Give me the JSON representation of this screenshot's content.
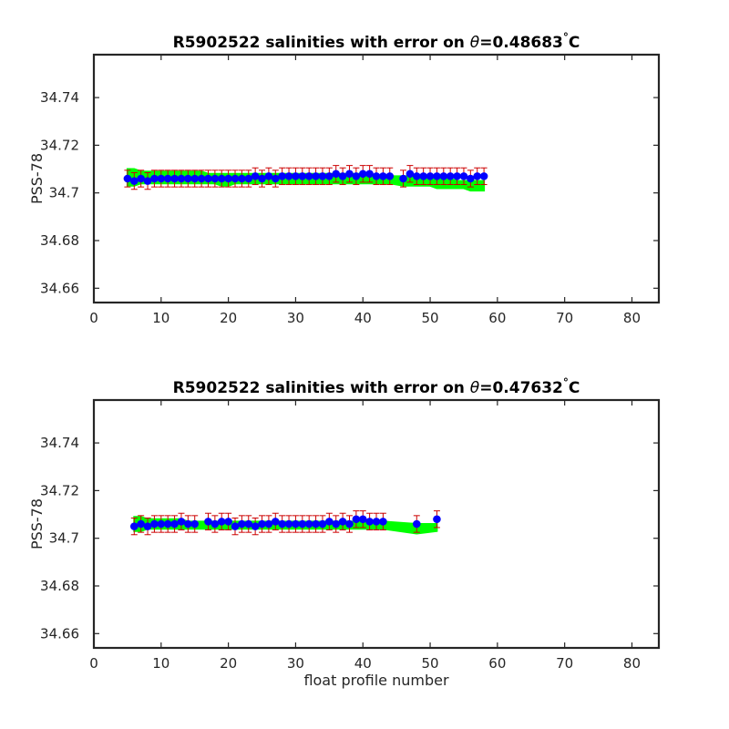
{
  "chart_data": [
    {
      "type": "scatter",
      "title": {
        "prefix": "R5902522 salinities with error on ",
        "symbol": "θ",
        "value": "=0.48683",
        "degree": "°",
        "unit": "C"
      },
      "xlabel": "",
      "ylabel": "PSS-78",
      "xlim": [
        0,
        84
      ],
      "ylim": [
        34.654,
        34.758
      ],
      "xticks": [
        0,
        10,
        20,
        30,
        40,
        50,
        60,
        70,
        80
      ],
      "xtick_labels": [
        "0",
        "10",
        "20",
        "30",
        "40",
        "50",
        "60",
        "70",
        "80"
      ],
      "yticks": [
        34.66,
        34.68,
        34.7,
        34.72,
        34.74
      ],
      "ytick_labels": [
        "34.66",
        "34.68",
        "34.7",
        "34.72",
        "34.74"
      ],
      "grid": false,
      "colors": {
        "points": "#0000ff",
        "errorbars": "#cc0000",
        "band": "#00ff00"
      },
      "x": [
        5,
        6,
        7,
        8,
        9,
        10,
        11,
        12,
        13,
        14,
        15,
        16,
        17,
        18,
        19,
        20,
        21,
        22,
        23,
        24,
        25,
        26,
        27,
        28,
        29,
        30,
        31,
        32,
        33,
        34,
        35,
        36,
        37,
        38,
        39,
        40,
        41,
        42,
        43,
        44,
        46,
        47,
        48,
        49,
        50,
        51,
        52,
        53,
        54,
        55,
        56,
        57,
        58
      ],
      "y": [
        34.706,
        34.705,
        34.706,
        34.705,
        34.706,
        34.706,
        34.706,
        34.706,
        34.706,
        34.706,
        34.706,
        34.706,
        34.706,
        34.706,
        34.706,
        34.706,
        34.706,
        34.706,
        34.706,
        34.707,
        34.706,
        34.707,
        34.706,
        34.707,
        34.707,
        34.707,
        34.707,
        34.707,
        34.707,
        34.707,
        34.707,
        34.708,
        34.707,
        34.708,
        34.707,
        34.708,
        34.708,
        34.707,
        34.707,
        34.707,
        34.706,
        34.708,
        34.707,
        34.707,
        34.707,
        34.707,
        34.707,
        34.707,
        34.707,
        34.707,
        34.706,
        34.707,
        34.707
      ],
      "error": 0.0035,
      "band_upper": [
        34.71,
        34.71,
        34.709,
        34.709,
        34.709,
        34.709,
        34.709,
        34.709,
        34.709,
        34.709,
        34.709,
        34.709,
        34.708,
        34.708,
        34.708,
        34.708,
        34.708,
        34.708,
        34.708,
        34.708,
        34.708,
        34.708,
        34.708,
        34.708,
        34.708,
        34.708,
        34.708,
        34.708,
        34.708,
        34.708,
        34.708,
        34.708,
        34.708,
        34.708,
        34.708,
        34.708,
        34.708,
        34.707,
        34.707,
        34.707,
        34.707,
        34.707,
        34.706,
        34.706,
        34.706,
        34.706,
        34.706,
        34.706,
        34.705,
        34.705,
        34.705,
        34.705,
        34.705
      ],
      "band_lower": [
        34.703,
        34.703,
        34.704,
        34.704,
        34.704,
        34.704,
        34.704,
        34.704,
        34.704,
        34.704,
        34.704,
        34.704,
        34.704,
        34.704,
        34.703,
        34.703,
        34.704,
        34.704,
        34.704,
        34.704,
        34.704,
        34.704,
        34.704,
        34.704,
        34.704,
        34.704,
        34.704,
        34.704,
        34.704,
        34.704,
        34.704,
        34.704,
        34.704,
        34.704,
        34.704,
        34.704,
        34.704,
        34.704,
        34.704,
        34.704,
        34.703,
        34.703,
        34.703,
        34.703,
        34.703,
        34.702,
        34.702,
        34.702,
        34.702,
        34.702,
        34.701,
        34.701,
        34.701
      ]
    },
    {
      "type": "scatter",
      "title": {
        "prefix": "R5902522 salinities with error on ",
        "symbol": "θ",
        "value": "=0.47632",
        "degree": "°",
        "unit": "C"
      },
      "xlabel": "float profile number",
      "ylabel": "PSS-78",
      "xlim": [
        0,
        84
      ],
      "ylim": [
        34.654,
        34.758
      ],
      "xticks": [
        0,
        10,
        20,
        30,
        40,
        50,
        60,
        70,
        80
      ],
      "xtick_labels": [
        "0",
        "10",
        "20",
        "30",
        "40",
        "50",
        "60",
        "70",
        "80"
      ],
      "yticks": [
        34.66,
        34.68,
        34.7,
        34.72,
        34.74
      ],
      "ytick_labels": [
        "34.66",
        "34.68",
        "34.7",
        "34.72",
        "34.74"
      ],
      "grid": false,
      "colors": {
        "points": "#0000ff",
        "errorbars": "#cc0000",
        "band": "#00ff00"
      },
      "x": [
        6,
        7,
        8,
        9,
        10,
        11,
        12,
        13,
        14,
        15,
        17,
        18,
        19,
        20,
        21,
        22,
        23,
        24,
        25,
        26,
        27,
        28,
        29,
        30,
        31,
        32,
        33,
        34,
        35,
        36,
        37,
        38,
        39,
        40,
        41,
        42,
        43,
        48,
        51
      ],
      "y": [
        34.705,
        34.706,
        34.705,
        34.706,
        34.706,
        34.706,
        34.706,
        34.707,
        34.706,
        34.706,
        34.707,
        34.706,
        34.707,
        34.707,
        34.705,
        34.706,
        34.706,
        34.705,
        34.706,
        34.706,
        34.707,
        34.706,
        34.706,
        34.706,
        34.706,
        34.706,
        34.706,
        34.706,
        34.707,
        34.706,
        34.707,
        34.706,
        34.708,
        34.708,
        34.707,
        34.707,
        34.707,
        34.706,
        34.708
      ],
      "error": 0.0035,
      "band_upper": [
        34.709,
        34.709,
        34.708,
        34.708,
        34.708,
        34.708,
        34.708,
        34.708,
        34.707,
        34.707,
        34.707,
        34.707,
        34.707,
        34.707,
        34.707,
        34.707,
        34.707,
        34.707,
        34.707,
        34.707,
        34.707,
        34.707,
        34.707,
        34.707,
        34.707,
        34.707,
        34.707,
        34.707,
        34.707,
        34.707,
        34.707,
        34.707,
        34.707,
        34.707,
        34.707,
        34.707,
        34.707,
        34.706,
        34.706
      ],
      "band_lower": [
        34.703,
        34.703,
        34.704,
        34.704,
        34.704,
        34.704,
        34.704,
        34.704,
        34.704,
        34.704,
        34.704,
        34.704,
        34.704,
        34.704,
        34.704,
        34.704,
        34.704,
        34.704,
        34.704,
        34.704,
        34.704,
        34.704,
        34.704,
        34.704,
        34.704,
        34.704,
        34.704,
        34.704,
        34.704,
        34.704,
        34.704,
        34.704,
        34.704,
        34.704,
        34.704,
        34.704,
        34.704,
        34.702,
        34.703
      ]
    }
  ]
}
